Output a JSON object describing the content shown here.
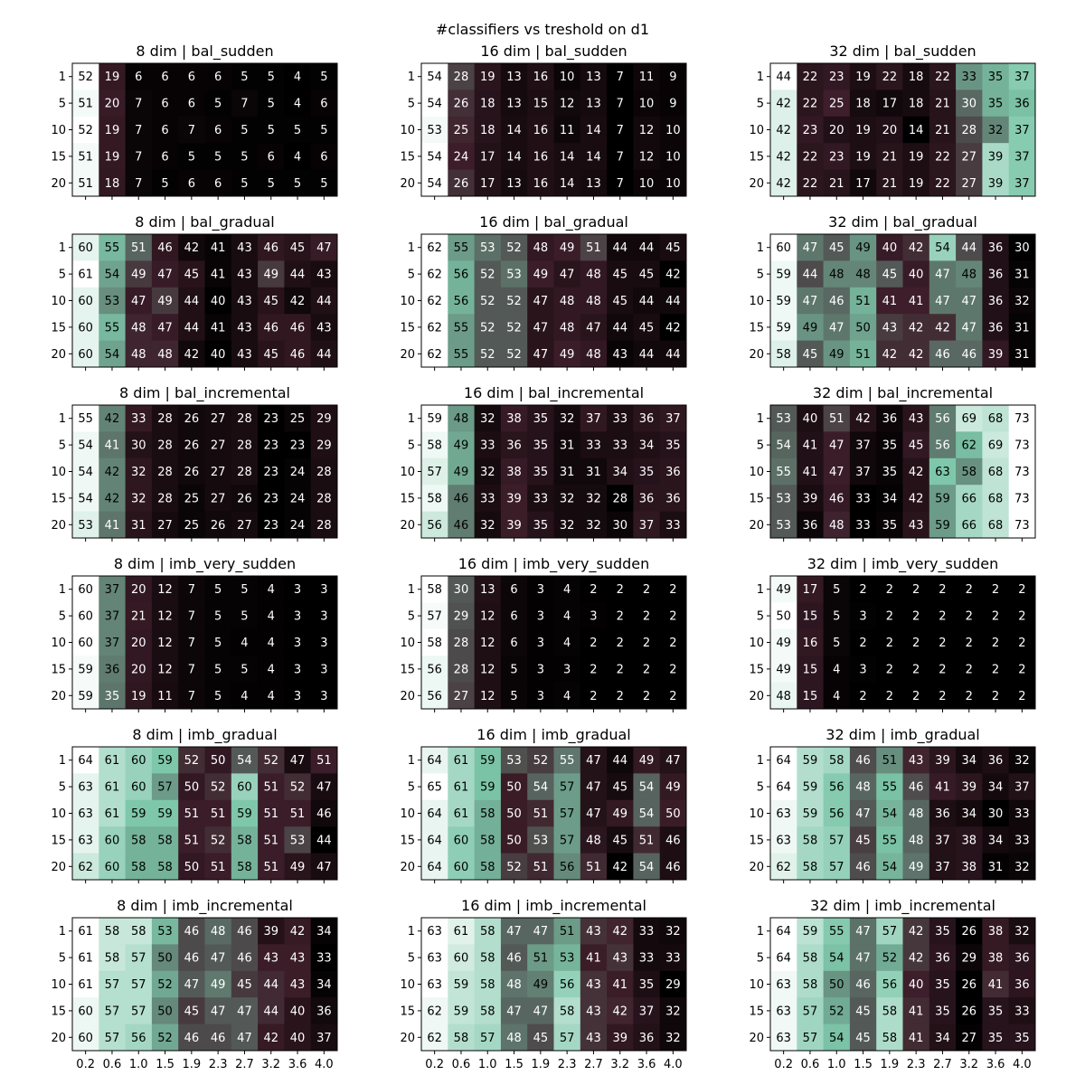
{
  "chart_data": {
    "type": "heatmap",
    "title": "#classifiers vs treshold on d1",
    "colormap": "bone",
    "vmin": 2,
    "vmax": 73,
    "ylabels": [
      "1",
      "5",
      "10",
      "15",
      "20"
    ],
    "xlabels": [
      "0.2",
      "0.6",
      "1.0",
      "1.5",
      "1.9",
      "2.3",
      "2.7",
      "3.2",
      "3.6",
      "4.0"
    ],
    "panels": [
      {
        "title": "8 dim | bal_sudden",
        "values": [
          [
            52,
            19,
            6,
            6,
            6,
            6,
            5,
            5,
            4,
            5
          ],
          [
            51,
            20,
            7,
            6,
            6,
            5,
            7,
            5,
            4,
            6
          ],
          [
            52,
            19,
            7,
            6,
            7,
            6,
            5,
            5,
            5,
            5
          ],
          [
            51,
            19,
            7,
            6,
            5,
            5,
            5,
            6,
            4,
            6
          ],
          [
            51,
            18,
            7,
            5,
            6,
            6,
            5,
            5,
            5,
            5
          ]
        ]
      },
      {
        "title": "16 dim | bal_sudden",
        "values": [
          [
            54,
            28,
            19,
            13,
            16,
            10,
            13,
            7,
            11,
            9
          ],
          [
            54,
            26,
            18,
            13,
            15,
            12,
            13,
            7,
            10,
            9
          ],
          [
            53,
            25,
            18,
            14,
            16,
            11,
            14,
            7,
            12,
            10
          ],
          [
            54,
            24,
            17,
            14,
            16,
            14,
            14,
            7,
            12,
            10
          ],
          [
            54,
            26,
            17,
            13,
            16,
            14,
            13,
            7,
            10,
            10
          ]
        ]
      },
      {
        "title": "32 dim | bal_sudden",
        "values": [
          [
            44,
            22,
            23,
            19,
            22,
            18,
            22,
            33,
            35,
            37
          ],
          [
            42,
            22,
            25,
            18,
            17,
            18,
            21,
            30,
            35,
            36
          ],
          [
            42,
            23,
            20,
            19,
            20,
            14,
            21,
            28,
            32,
            37
          ],
          [
            42,
            22,
            23,
            19,
            21,
            19,
            22,
            27,
            39,
            37
          ],
          [
            42,
            22,
            21,
            17,
            21,
            19,
            22,
            27,
            39,
            37
          ]
        ]
      },
      {
        "title": "8 dim | bal_gradual",
        "values": [
          [
            60,
            55,
            51,
            46,
            42,
            41,
            43,
            46,
            45,
            47
          ],
          [
            61,
            54,
            49,
            47,
            45,
            41,
            43,
            49,
            44,
            43
          ],
          [
            60,
            53,
            47,
            49,
            44,
            40,
            43,
            45,
            42,
            44
          ],
          [
            60,
            55,
            48,
            47,
            44,
            41,
            43,
            46,
            46,
            43
          ],
          [
            60,
            54,
            48,
            48,
            42,
            40,
            43,
            45,
            46,
            44
          ]
        ]
      },
      {
        "title": "16 dim | bal_gradual",
        "values": [
          [
            62,
            55,
            53,
            52,
            48,
            49,
            51,
            44,
            44,
            45
          ],
          [
            62,
            56,
            52,
            53,
            49,
            47,
            48,
            45,
            45,
            42
          ],
          [
            62,
            56,
            52,
            52,
            47,
            48,
            48,
            45,
            44,
            44
          ],
          [
            62,
            55,
            52,
            52,
            47,
            48,
            47,
            44,
            45,
            42
          ],
          [
            62,
            55,
            52,
            52,
            47,
            49,
            48,
            43,
            44,
            44
          ]
        ]
      },
      {
        "title": "32 dim | bal_gradual",
        "values": [
          [
            60,
            47,
            45,
            49,
            40,
            42,
            54,
            44,
            36,
            30
          ],
          [
            59,
            44,
            48,
            48,
            45,
            40,
            47,
            48,
            36,
            31
          ],
          [
            59,
            47,
            46,
            51,
            41,
            41,
            47,
            47,
            36,
            32
          ],
          [
            59,
            49,
            47,
            50,
            43,
            42,
            42,
            47,
            36,
            31
          ],
          [
            58,
            45,
            49,
            51,
            42,
            42,
            46,
            46,
            39,
            31
          ]
        ]
      },
      {
        "title": "8 dim | bal_incremental",
        "values": [
          [
            55,
            42,
            33,
            28,
            26,
            27,
            28,
            23,
            25,
            29
          ],
          [
            54,
            41,
            30,
            28,
            26,
            27,
            28,
            23,
            23,
            29
          ],
          [
            54,
            42,
            32,
            28,
            26,
            27,
            28,
            23,
            24,
            28
          ],
          [
            54,
            42,
            32,
            28,
            25,
            27,
            26,
            23,
            24,
            28
          ],
          [
            53,
            41,
            31,
            27,
            25,
            26,
            27,
            23,
            24,
            28
          ]
        ]
      },
      {
        "title": "16 dim | bal_incremental",
        "values": [
          [
            59,
            48,
            32,
            38,
            35,
            32,
            37,
            33,
            36,
            37
          ],
          [
            58,
            49,
            33,
            36,
            35,
            31,
            33,
            33,
            34,
            35
          ],
          [
            57,
            49,
            32,
            38,
            35,
            31,
            31,
            34,
            35,
            36
          ],
          [
            58,
            46,
            33,
            39,
            33,
            32,
            32,
            28,
            36,
            36
          ],
          [
            56,
            46,
            32,
            39,
            35,
            32,
            32,
            30,
            37,
            33
          ]
        ]
      },
      {
        "title": "32 dim | bal_incremental",
        "values": [
          [
            53,
            40,
            51,
            42,
            36,
            43,
            56,
            69,
            68,
            73
          ],
          [
            54,
            41,
            47,
            37,
            35,
            45,
            56,
            62,
            69,
            73
          ],
          [
            55,
            41,
            47,
            37,
            35,
            42,
            63,
            58,
            68,
            73
          ],
          [
            53,
            39,
            46,
            33,
            34,
            42,
            59,
            66,
            68,
            73
          ],
          [
            53,
            36,
            48,
            33,
            35,
            43,
            59,
            66,
            68,
            73
          ]
        ]
      },
      {
        "title": "8 dim | imb_very_sudden",
        "values": [
          [
            60,
            37,
            20,
            12,
            7,
            5,
            5,
            4,
            3,
            3
          ],
          [
            60,
            37,
            21,
            12,
            7,
            5,
            5,
            4,
            3,
            3
          ],
          [
            60,
            37,
            20,
            12,
            7,
            5,
            4,
            4,
            3,
            3
          ],
          [
            59,
            36,
            20,
            12,
            7,
            5,
            5,
            4,
            3,
            3
          ],
          [
            59,
            35,
            19,
            11,
            7,
            5,
            4,
            4,
            3,
            3
          ]
        ]
      },
      {
        "title": "16 dim | imb_very_sudden",
        "values": [
          [
            58,
            30,
            13,
            6,
            3,
            4,
            2,
            2,
            2,
            2
          ],
          [
            57,
            29,
            12,
            6,
            3,
            4,
            3,
            2,
            2,
            2
          ],
          [
            58,
            28,
            12,
            6,
            3,
            4,
            2,
            2,
            2,
            2
          ],
          [
            56,
            28,
            12,
            5,
            3,
            3,
            2,
            2,
            2,
            2
          ],
          [
            56,
            27,
            12,
            5,
            3,
            4,
            2,
            2,
            2,
            2
          ]
        ]
      },
      {
        "title": "32 dim | imb_very_sudden",
        "values": [
          [
            49,
            17,
            5,
            2,
            2,
            2,
            2,
            2,
            2,
            2
          ],
          [
            50,
            15,
            5,
            3,
            2,
            2,
            2,
            2,
            2,
            2
          ],
          [
            49,
            16,
            5,
            2,
            2,
            2,
            2,
            2,
            2,
            2
          ],
          [
            49,
            15,
            4,
            3,
            2,
            2,
            2,
            2,
            2,
            2
          ],
          [
            48,
            15,
            4,
            2,
            2,
            2,
            2,
            2,
            2,
            2
          ]
        ]
      },
      {
        "title": "8 dim | imb_gradual",
        "values": [
          [
            64,
            61,
            60,
            59,
            52,
            50,
            54,
            52,
            47,
            51
          ],
          [
            63,
            61,
            60,
            57,
            50,
            52,
            60,
            51,
            52,
            47
          ],
          [
            63,
            61,
            59,
            59,
            51,
            51,
            59,
            51,
            51,
            46
          ],
          [
            63,
            60,
            58,
            58,
            51,
            52,
            58,
            51,
            53,
            44
          ],
          [
            62,
            60,
            58,
            58,
            50,
            51,
            58,
            51,
            49,
            47
          ]
        ]
      },
      {
        "title": "16 dim | imb_gradual",
        "values": [
          [
            64,
            61,
            59,
            53,
            52,
            55,
            47,
            44,
            49,
            47
          ],
          [
            65,
            61,
            59,
            50,
            54,
            57,
            47,
            45,
            54,
            49
          ],
          [
            64,
            61,
            58,
            50,
            51,
            57,
            47,
            49,
            54,
            50
          ],
          [
            64,
            60,
            58,
            50,
            53,
            57,
            48,
            45,
            51,
            46
          ],
          [
            64,
            60,
            58,
            52,
            51,
            56,
            51,
            42,
            54,
            46
          ]
        ]
      },
      {
        "title": "32 dim | imb_gradual",
        "values": [
          [
            64,
            59,
            58,
            46,
            51,
            43,
            39,
            34,
            36,
            32
          ],
          [
            64,
            59,
            56,
            48,
            55,
            46,
            41,
            39,
            34,
            37
          ],
          [
            63,
            59,
            56,
            47,
            54,
            48,
            36,
            34,
            30,
            33
          ],
          [
            63,
            58,
            57,
            45,
            55,
            48,
            37,
            38,
            34,
            33
          ],
          [
            62,
            58,
            57,
            46,
            54,
            49,
            37,
            38,
            31,
            32
          ]
        ]
      },
      {
        "title": "8 dim | imb_incremental",
        "values": [
          [
            61,
            58,
            58,
            53,
            46,
            48,
            46,
            39,
            42,
            34
          ],
          [
            61,
            58,
            57,
            50,
            46,
            47,
            46,
            43,
            43,
            33
          ],
          [
            61,
            57,
            57,
            52,
            47,
            49,
            45,
            44,
            43,
            34
          ],
          [
            60,
            57,
            57,
            50,
            45,
            47,
            47,
            44,
            40,
            36
          ],
          [
            60,
            57,
            56,
            52,
            46,
            46,
            47,
            42,
            40,
            37
          ]
        ]
      },
      {
        "title": "16 dim | imb_incremental",
        "values": [
          [
            63,
            61,
            58,
            47,
            47,
            51,
            43,
            42,
            33,
            32
          ],
          [
            63,
            60,
            58,
            46,
            51,
            53,
            41,
            43,
            33,
            33
          ],
          [
            63,
            59,
            58,
            48,
            49,
            56,
            43,
            41,
            35,
            29
          ],
          [
            62,
            59,
            58,
            47,
            47,
            58,
            43,
            42,
            37,
            32
          ],
          [
            62,
            58,
            57,
            48,
            45,
            57,
            43,
            39,
            36,
            32
          ]
        ]
      },
      {
        "title": "32 dim | imb_incremental",
        "values": [
          [
            64,
            59,
            55,
            47,
            57,
            42,
            35,
            26,
            38,
            32
          ],
          [
            64,
            58,
            54,
            47,
            52,
            42,
            36,
            29,
            38,
            36
          ],
          [
            63,
            58,
            50,
            46,
            56,
            40,
            35,
            26,
            41,
            36
          ],
          [
            63,
            57,
            52,
            45,
            58,
            41,
            35,
            26,
            35,
            33
          ],
          [
            63,
            57,
            54,
            45,
            58,
            41,
            34,
            27,
            35,
            35
          ]
        ]
      }
    ]
  }
}
